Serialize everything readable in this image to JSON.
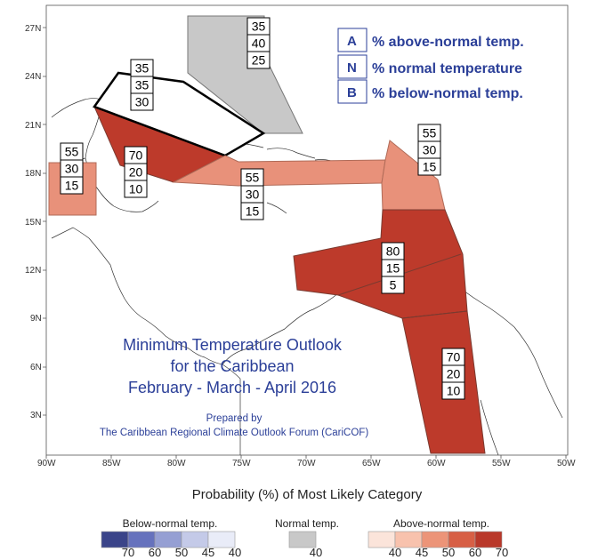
{
  "axes": {
    "lat_labels": [
      "27N",
      "24N",
      "21N",
      "18N",
      "15N",
      "12N",
      "9N",
      "6N",
      "3N"
    ],
    "lon_labels": [
      "90W",
      "85W",
      "80W",
      "75W",
      "70W",
      "65W",
      "60W",
      "55W",
      "50W"
    ]
  },
  "key": [
    {
      "letter": "A",
      "text": "% above-normal temp."
    },
    {
      "letter": "N",
      "text": "% normal temperature"
    },
    {
      "letter": "B",
      "text": "% below-normal temp."
    }
  ],
  "title": {
    "line1": "Minimum Temperature Outlook",
    "line2": "for the Caribbean",
    "line3": "February - March - April 2016"
  },
  "prepared": {
    "line1": "Prepared by",
    "line2": "The Caribbean Regional Climate Outlook Forum (CariCOF)"
  },
  "regions": [
    {
      "id": "bahamas",
      "category": "normal",
      "values": [
        "35",
        "40",
        "25"
      ],
      "fill": "#c8c8c8"
    },
    {
      "id": "cuba",
      "category": "none",
      "values": [
        "35",
        "35",
        "30"
      ],
      "fill": "#ffffff"
    },
    {
      "id": "western-caribbean-sea",
      "category": "above-70",
      "values": [
        "70",
        "20",
        "10"
      ],
      "fill": "#bd3a2b"
    },
    {
      "id": "belize-honduras",
      "category": "above-50",
      "values": [
        "55",
        "30",
        "15"
      ],
      "fill": "#e8917a"
    },
    {
      "id": "greater-antilles",
      "category": "above-50",
      "values": [
        "55",
        "30",
        "15"
      ],
      "fill": "#e8917a"
    },
    {
      "id": "leeward-islands",
      "category": "above-50",
      "values": [
        "55",
        "30",
        "15"
      ],
      "fill": "#e8917a"
    },
    {
      "id": "eastern-caribbean-sea",
      "category": "above-70",
      "values": [
        "80",
        "15",
        "5"
      ],
      "fill": "#bd3a2b"
    },
    {
      "id": "guianas",
      "category": "above-70",
      "values": [
        "70",
        "20",
        "10"
      ],
      "fill": "#bd3a2b"
    }
  ],
  "legend": {
    "title": "Probability (%) of Most Likely Category",
    "below": {
      "label": "Below-normal temp.",
      "values": [
        "70",
        "60",
        "50",
        "45",
        "40"
      ],
      "colors": [
        "#3a4489",
        "#6672bd",
        "#959fd3",
        "#c4cae8",
        "#e9ecf8"
      ]
    },
    "normal": {
      "label": "Normal temp.",
      "values": [
        "40"
      ],
      "colors": [
        "#c8c8c8"
      ]
    },
    "above": {
      "label": "Above-normal temp.",
      "values": [
        "40",
        "45",
        "50",
        "60",
        "70"
      ],
      "colors": [
        "#fbe4da",
        "#f8c2ad",
        "#ec9478",
        "#d75f45",
        "#b9382a"
      ]
    }
  }
}
